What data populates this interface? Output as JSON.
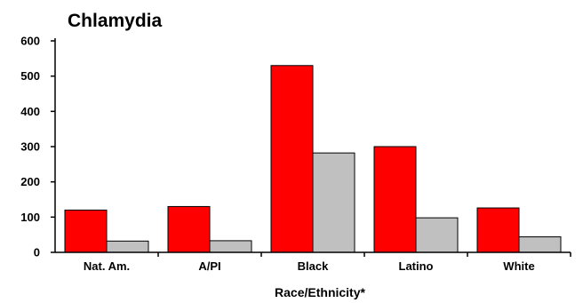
{
  "chart_data": {
    "type": "bar",
    "title": "Chlamydia",
    "xlabel": "Race/Ethnicity*",
    "ylabel": "",
    "categories": [
      "Nat. Am.",
      "A/PI",
      "Black",
      "Latino",
      "White"
    ],
    "series": [
      {
        "color": "#ff0000",
        "values": [
          120,
          130,
          530,
          300,
          126
        ]
      },
      {
        "color": "#c0c0c0",
        "values": [
          32,
          33,
          282,
          98,
          44
        ]
      }
    ],
    "ylim": [
      0,
      600
    ],
    "yticks": [
      0,
      100,
      200,
      300,
      400,
      500,
      600
    ],
    "grid": false,
    "legend": "none"
  }
}
